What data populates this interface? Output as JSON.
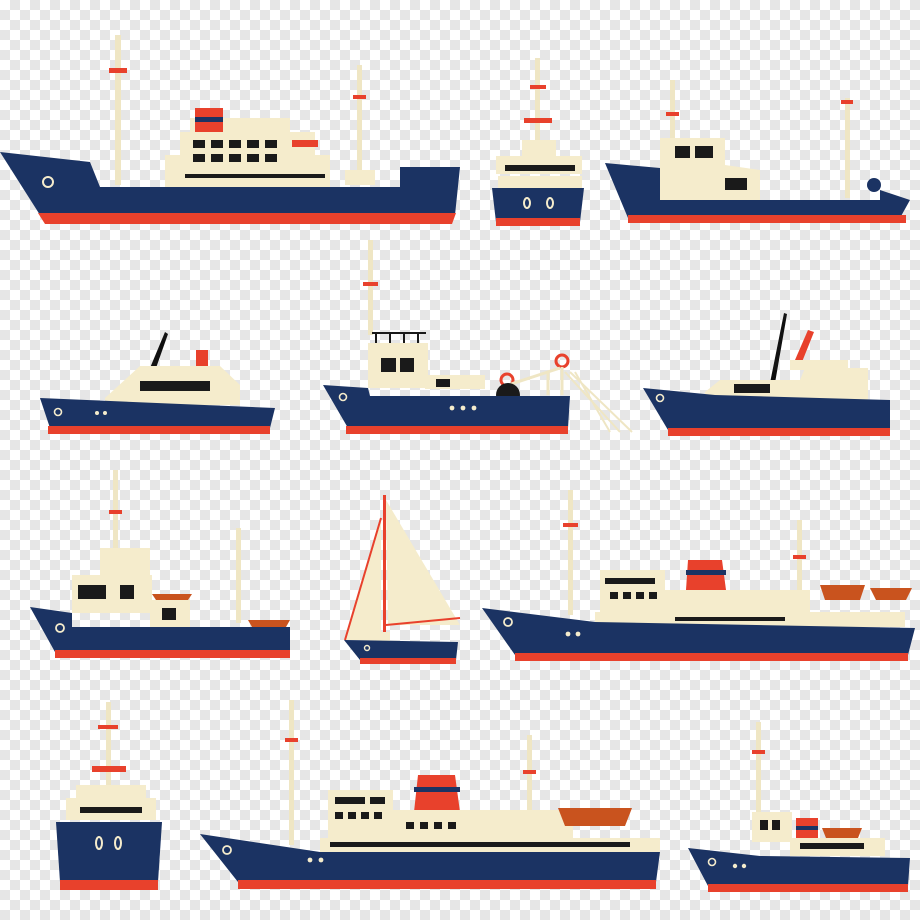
{
  "image": {
    "subject": "ships-and-boats-illustration-set",
    "ship_count": 12
  },
  "palette": {
    "hull": "#1b3363",
    "keel": "#e8412c",
    "cream": "#f5eccc",
    "window": "#1a1a1a",
    "dark": "#111111",
    "boat": "#c9531e",
    "mast": "#efe6c4"
  },
  "ships": [
    {
      "name": "ship-cargo-large",
      "icon": "cargo-ship-icon"
    },
    {
      "name": "ship-tug-front",
      "icon": "tugboat-bow-icon"
    },
    {
      "name": "ship-trawler-flat",
      "icon": "trawler-icon"
    },
    {
      "name": "ship-motor-yacht",
      "icon": "motor-yacht-icon"
    },
    {
      "name": "ship-fishing-crane",
      "icon": "fishing-boat-icon"
    },
    {
      "name": "ship-patrol-boat",
      "icon": "patrol-boat-icon"
    },
    {
      "name": "ship-trawler-high",
      "icon": "trawler-icon"
    },
    {
      "name": "ship-sailboat",
      "icon": "sailboat-icon"
    },
    {
      "name": "ship-ferry-long",
      "icon": "ferry-icon"
    },
    {
      "name": "ship-tug-front-small",
      "icon": "tugboat-bow-icon"
    },
    {
      "name": "ship-passenger-liner",
      "icon": "passenger-ship-icon"
    },
    {
      "name": "ship-small-ferry",
      "icon": "ferry-icon"
    }
  ]
}
